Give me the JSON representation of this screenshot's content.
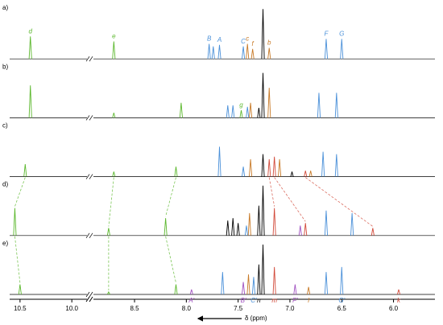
{
  "chart_data": {
    "type": "spectra",
    "x_label": "δ (ppm)",
    "xlim": [
      10.6,
      5.6
    ],
    "x_break": [
      9.9,
      8.85
    ],
    "xticks": [
      10.5,
      {
        "value": 10,
        "label": "10.0"
      },
      8.5,
      {
        "value": 8,
        "label": "8.0"
      },
      7.5,
      {
        "value": 7,
        "label": "7.0"
      },
      6.5,
      {
        "value": 6,
        "label": "6.0"
      }
    ],
    "spectra": [
      {
        "name": "a)",
        "peaks": [
          {
            "ppm": 10.4,
            "intensity": 0.45,
            "color": "#5cb82e",
            "label": "d"
          },
          {
            "ppm": 8.7,
            "intensity": 0.35,
            "color": "#5cb82e",
            "label": "e"
          },
          {
            "ppm": 7.78,
            "intensity": 0.3,
            "color": "#4a90d9",
            "label": "B"
          },
          {
            "ppm": 7.74,
            "intensity": 0.25,
            "color": "#4a90d9"
          },
          {
            "ppm": 7.68,
            "intensity": 0.28,
            "color": "#4a90d9",
            "label": "A"
          },
          {
            "ppm": 7.45,
            "intensity": 0.25,
            "color": "#4a90d9",
            "label": "C"
          },
          {
            "ppm": 7.41,
            "intensity": 0.3,
            "color": "#c87a28",
            "label": "c"
          },
          {
            "ppm": 7.36,
            "intensity": 0.2,
            "color": "#c87a28",
            "label": "f"
          },
          {
            "ppm": 7.26,
            "intensity": 1.0,
            "color": "#000000"
          },
          {
            "ppm": 7.2,
            "intensity": 0.22,
            "color": "#c87a28",
            "label": "b"
          },
          {
            "ppm": 6.65,
            "intensity": 0.4,
            "color": "#4a90d9",
            "label": "F"
          },
          {
            "ppm": 6.5,
            "intensity": 0.4,
            "color": "#4a90d9",
            "label": "G"
          }
        ]
      },
      {
        "name": "b)",
        "peaks": [
          {
            "ppm": 10.4,
            "intensity": 0.65,
            "color": "#5cb82e"
          },
          {
            "ppm": 8.7,
            "intensity": 0.1,
            "color": "#5cb82e"
          },
          {
            "ppm": 8.05,
            "intensity": 0.3,
            "color": "#5cb82e"
          },
          {
            "ppm": 7.6,
            "intensity": 0.25,
            "color": "#4a90d9"
          },
          {
            "ppm": 7.55,
            "intensity": 0.25,
            "color": "#4a90d9"
          },
          {
            "ppm": 7.47,
            "intensity": 0.15,
            "color": "#5cb82e",
            "label": "g"
          },
          {
            "ppm": 7.41,
            "intensity": 0.22,
            "color": "#4a90d9"
          },
          {
            "ppm": 7.38,
            "intensity": 0.3,
            "color": "#c87a28"
          },
          {
            "ppm": 7.3,
            "intensity": 0.2,
            "color": "#000000"
          },
          {
            "ppm": 7.26,
            "intensity": 0.9,
            "color": "#000000"
          },
          {
            "ppm": 7.2,
            "intensity": 0.6,
            "color": "#c87a28"
          },
          {
            "ppm": 6.72,
            "intensity": 0.5,
            "color": "#4a90d9"
          },
          {
            "ppm": 6.55,
            "intensity": 0.5,
            "color": "#4a90d9"
          }
        ]
      },
      {
        "name": "c)",
        "peaks": [
          {
            "ppm": 10.45,
            "intensity": 0.25,
            "color": "#5cb82e"
          },
          {
            "ppm": 8.7,
            "intensity": 0.1,
            "color": "#5cb82e"
          },
          {
            "ppm": 8.1,
            "intensity": 0.2,
            "color": "#5cb82e"
          },
          {
            "ppm": 7.68,
            "intensity": 0.6,
            "color": "#4a90d9"
          },
          {
            "ppm": 7.45,
            "intensity": 0.2,
            "color": "#4a90d9"
          },
          {
            "ppm": 7.38,
            "intensity": 0.35,
            "color": "#c87a28"
          },
          {
            "ppm": 7.26,
            "intensity": 0.45,
            "color": "#000000"
          },
          {
            "ppm": 7.2,
            "intensity": 0.35,
            "color": "#d24a3a"
          },
          {
            "ppm": 7.15,
            "intensity": 0.4,
            "color": "#d24a3a"
          },
          {
            "ppm": 7.1,
            "intensity": 0.35,
            "color": "#c87a28"
          },
          {
            "ppm": 6.98,
            "intensity": 0.1,
            "color": "#000000"
          },
          {
            "ppm": 6.85,
            "intensity": 0.12,
            "color": "#d24a3a"
          },
          {
            "ppm": 6.8,
            "intensity": 0.12,
            "color": "#c87a28"
          },
          {
            "ppm": 6.68,
            "intensity": 0.5,
            "color": "#4a90d9"
          },
          {
            "ppm": 6.55,
            "intensity": 0.45,
            "color": "#4a90d9"
          }
        ]
      },
      {
        "name": "d)",
        "peaks": [
          {
            "ppm": 10.55,
            "intensity": 0.55,
            "color": "#5cb82e"
          },
          {
            "ppm": 8.75,
            "intensity": 0.15,
            "color": "#5cb82e"
          },
          {
            "ppm": 8.2,
            "intensity": 0.35,
            "color": "#5cb82e"
          },
          {
            "ppm": 7.6,
            "intensity": 0.3,
            "color": "#000000"
          },
          {
            "ppm": 7.55,
            "intensity": 0.35,
            "color": "#000000"
          },
          {
            "ppm": 7.5,
            "intensity": 0.25,
            "color": "#000000"
          },
          {
            "ppm": 7.42,
            "intensity": 0.2,
            "color": "#4a90d9"
          },
          {
            "ppm": 7.39,
            "intensity": 0.45,
            "color": "#c87a28"
          },
          {
            "ppm": 7.3,
            "intensity": 0.6,
            "color": "#000000"
          },
          {
            "ppm": 7.26,
            "intensity": 1.0,
            "color": "#000000"
          },
          {
            "ppm": 7.15,
            "intensity": 0.55,
            "color": "#d24a3a"
          },
          {
            "ppm": 6.9,
            "intensity": 0.2,
            "color": "#a050c0"
          },
          {
            "ppm": 6.85,
            "intensity": 0.25,
            "color": "#d24a3a"
          },
          {
            "ppm": 6.65,
            "intensity": 0.5,
            "color": "#4a90d9"
          },
          {
            "ppm": 6.4,
            "intensity": 0.45,
            "color": "#4a90d9"
          },
          {
            "ppm": 6.2,
            "intensity": 0.15,
            "color": "#d24a3a"
          }
        ]
      },
      {
        "name": "e)",
        "peaks": [
          {
            "ppm": 10.5,
            "intensity": 0.2,
            "color": "#5cb82e"
          },
          {
            "ppm": 8.75,
            "intensity": 0.05,
            "color": "#5cb82e"
          },
          {
            "ppm": 8.1,
            "intensity": 0.2,
            "color": "#5cb82e"
          },
          {
            "ppm": 7.95,
            "intensity": 0.1,
            "color": "#a050c0",
            "label": "A'"
          },
          {
            "ppm": 7.65,
            "intensity": 0.45,
            "color": "#4a90d9"
          },
          {
            "ppm": 7.45,
            "intensity": 0.25,
            "color": "#a050c0",
            "label": "B'"
          },
          {
            "ppm": 7.4,
            "intensity": 0.4,
            "color": "#c87a28"
          },
          {
            "ppm": 7.35,
            "intensity": 0.35,
            "color": "#4a90d9",
            "label": "C'"
          },
          {
            "ppm": 7.3,
            "intensity": 0.6,
            "color": "#000000",
            "label": "n"
          },
          {
            "ppm": 7.26,
            "intensity": 1.0,
            "color": "#000000"
          },
          {
            "ppm": 7.15,
            "intensity": 0.55,
            "color": "#d24a3a",
            "label": "m"
          },
          {
            "ppm": 6.95,
            "intensity": 0.2,
            "color": "#a050c0",
            "label": "F'"
          },
          {
            "ppm": 6.82,
            "intensity": 0.15,
            "color": "#c87a28",
            "label": "l"
          },
          {
            "ppm": 6.65,
            "intensity": 0.45,
            "color": "#4a90d9"
          },
          {
            "ppm": 6.5,
            "intensity": 0.55,
            "color": "#4a90d9",
            "label": "G'"
          },
          {
            "ppm": 5.95,
            "intensity": 0.1,
            "color": "#d24a3a",
            "label": "k"
          }
        ]
      }
    ]
  }
}
